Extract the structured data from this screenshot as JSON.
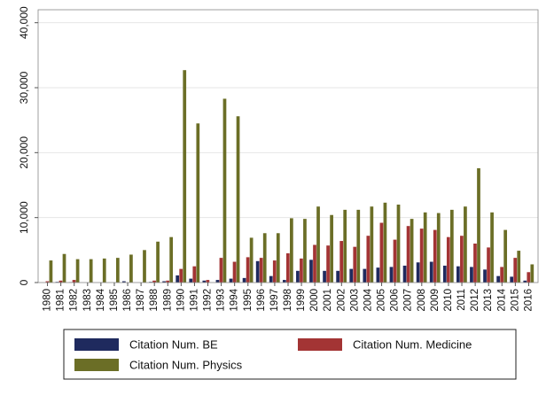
{
  "chart_data": {
    "type": "bar",
    "categories": [
      "1980",
      "1981",
      "1982",
      "1983",
      "1984",
      "1985",
      "1986",
      "1987",
      "1988",
      "1989",
      "1990",
      "1991",
      "1992",
      "1993",
      "1994",
      "1995",
      "1996",
      "1997",
      "1998",
      "1999",
      "2000",
      "2001",
      "2002",
      "2003",
      "2004",
      "2005",
      "2006",
      "2007",
      "2008",
      "2009",
      "2010",
      "2011",
      "2012",
      "2013",
      "2014",
      "2015",
      "2016"
    ],
    "series": [
      {
        "name": "Citation Num. BE",
        "color": "#1f2a5e",
        "values": [
          0,
          100,
          50,
          0,
          0,
          0,
          200,
          0,
          100,
          200,
          1100,
          600,
          300,
          400,
          600,
          700,
          3300,
          1000,
          400,
          1800,
          3500,
          1800,
          1800,
          2100,
          2100,
          2300,
          2400,
          2600,
          3100,
          3200,
          2600,
          2500,
          2400,
          2000,
          1000,
          900,
          300
        ]
      },
      {
        "name": "Citation Num. Medicine",
        "color": "#a33434",
        "values": [
          200,
          300,
          400,
          0,
          0,
          0,
          0,
          0,
          300,
          300,
          2100,
          2500,
          400,
          3800,
          3200,
          3900,
          3800,
          3400,
          4500,
          3700,
          5800,
          5700,
          6400,
          5500,
          7200,
          9200,
          6600,
          8700,
          8300,
          8100,
          7000,
          7200,
          6000,
          5400,
          2400,
          3800,
          1600
        ]
      },
      {
        "name": "Citation Num. Physics",
        "color": "#6b6e26",
        "values": [
          3400,
          4400,
          3600,
          3600,
          3700,
          3800,
          4300,
          5000,
          6300,
          7000,
          32700,
          24500,
          0,
          28300,
          25600,
          6900,
          7600,
          7600,
          9900,
          9800,
          11700,
          10400,
          11200,
          11200,
          11700,
          12300,
          12000,
          9800,
          10800,
          10700,
          11200,
          11700,
          17600,
          10800,
          8100,
          4900,
          2800
        ]
      }
    ],
    "yticks": [
      "0",
      "10,000",
      "20,000",
      "30,000",
      "40,000"
    ],
    "ytick_values": [
      0,
      10000,
      20000,
      30000,
      40000
    ],
    "ylim": [
      0,
      42000
    ],
    "grid": true,
    "legend_position": "bottom",
    "title": "",
    "xlabel": "",
    "ylabel": ""
  }
}
